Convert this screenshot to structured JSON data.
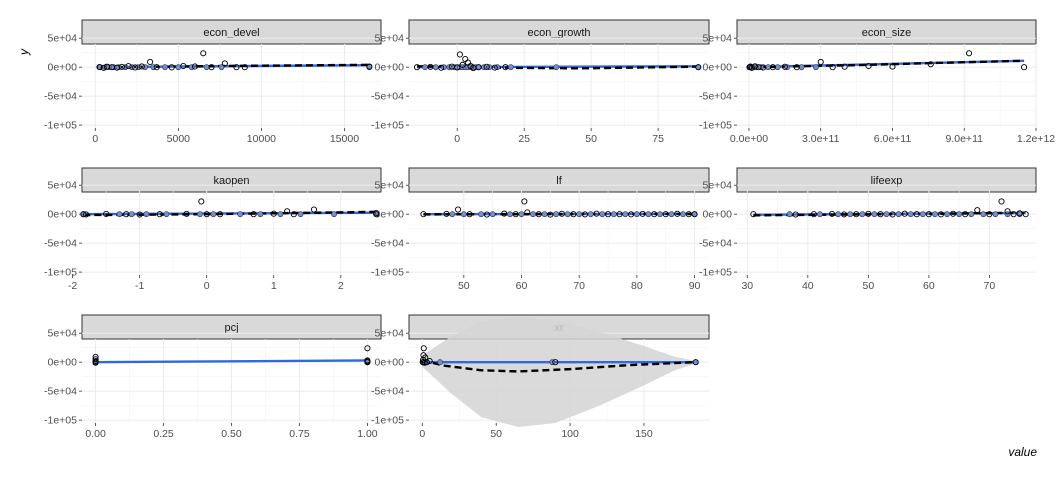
{
  "chart_data": {
    "type": "scatter",
    "xlabel": "value",
    "ylabel": "y",
    "ylim": [
      -105000,
      40000
    ],
    "y_ticks": [
      {
        "v": 50000,
        "label": "5e+04"
      },
      {
        "v": 0,
        "label": "0e+00"
      },
      {
        "v": -50000,
        "label": "-5e+04"
      },
      {
        "v": -100000,
        "label": "-1e+05"
      }
    ],
    "grid": true,
    "colors": {
      "strip": "#d9d9d9",
      "smooth": "#3366e0",
      "dashed": "#000000",
      "band": "#d3d3d3",
      "grid": "#ebebeb",
      "point_fill": "#6e8fd9"
    },
    "panels": [
      {
        "label": "econ_devel",
        "xlim": [
          -800,
          17200
        ],
        "x_ticks": [
          {
            "v": 0,
            "label": "0"
          },
          {
            "v": 5000,
            "label": "5000"
          },
          {
            "v": 10000,
            "label": "10000"
          },
          {
            "v": 15000,
            "label": "15000"
          }
        ],
        "smooth": [
          [
            100,
            0
          ],
          [
            16500,
            3500
          ]
        ],
        "dashed": [
          [
            100,
            -600
          ],
          [
            4000,
            800
          ],
          [
            9000,
            2400
          ],
          [
            16500,
            4000
          ]
        ],
        "points_filled": [
          300,
          600,
          800,
          1100,
          1400,
          1800,
          2200,
          2600,
          3000,
          3500,
          4200,
          5000,
          5800,
          6700,
          7600,
          16500
        ],
        "points_open": [
          [
            250,
            300
          ],
          [
            500,
            -1200
          ],
          [
            700,
            800
          ],
          [
            1000,
            0
          ],
          [
            1300,
            -800
          ],
          [
            1600,
            500
          ],
          [
            2000,
            1800
          ],
          [
            2400,
            -500
          ],
          [
            2800,
            1200
          ],
          [
            3300,
            9000
          ],
          [
            3700,
            0
          ],
          [
            4600,
            -300
          ],
          [
            5300,
            2000
          ],
          [
            6000,
            1200
          ],
          [
            6500,
            24000
          ],
          [
            7000,
            0
          ],
          [
            7800,
            6500
          ],
          [
            8500,
            0
          ],
          [
            9000,
            0
          ],
          [
            16500,
            1000
          ]
        ]
      },
      {
        "label": "econ_growth",
        "xlim": [
          -18,
          94
        ],
        "x_ticks": [
          {
            "v": 0,
            "label": "0"
          },
          {
            "v": 25,
            "label": "25"
          },
          {
            "v": 50,
            "label": "50"
          },
          {
            "v": 75,
            "label": "75"
          }
        ],
        "smooth": [
          [
            -15,
            0
          ],
          [
            90,
            1500
          ]
        ],
        "dashed": [
          [
            -15,
            1500
          ],
          [
            0,
            1000
          ],
          [
            20,
            -1200
          ],
          [
            45,
            -2000
          ],
          [
            70,
            -500
          ],
          [
            90,
            1000
          ]
        ],
        "points_filled": [
          -12,
          -8,
          -5,
          -3,
          -1,
          0,
          1,
          2,
          3,
          4,
          5,
          6,
          7,
          8,
          10,
          12,
          15,
          20,
          37,
          90
        ],
        "points_open": [
          [
            -15,
            0
          ],
          [
            -10,
            500
          ],
          [
            -6,
            -1000
          ],
          [
            -2,
            800
          ],
          [
            0,
            -500
          ],
          [
            1,
            22000
          ],
          [
            2,
            4000
          ],
          [
            3,
            14000
          ],
          [
            4,
            8000
          ],
          [
            5,
            2000
          ],
          [
            6,
            -1500
          ],
          [
            8,
            0
          ],
          [
            11,
            600
          ],
          [
            14,
            -800
          ],
          [
            18,
            0
          ],
          [
            90,
            0
          ]
        ]
      },
      {
        "label": "econ_size",
        "xlim": [
          -50000000000.0,
          1200000000000.0
        ],
        "x_ticks": [
          {
            "v": 0,
            "label": "0.0e+00"
          },
          {
            "v": 300000000000.0,
            "label": "3.0e+11"
          },
          {
            "v": 600000000000.0,
            "label": "6.0e+11"
          },
          {
            "v": 900000000000.0,
            "label": "9.0e+11"
          },
          {
            "v": 1200000000000.0,
            "label": "1.2e+12"
          }
        ],
        "smooth": [
          [
            0,
            0
          ],
          [
            1150000000000.0,
            11000
          ]
        ],
        "dashed": [
          [
            0,
            -500
          ],
          [
            200000000000.0,
            1500
          ],
          [
            500000000000.0,
            4000
          ],
          [
            800000000000.0,
            7500
          ],
          [
            1150000000000.0,
            11000
          ]
        ],
        "points_filled": [
          5000000000.0,
          10000000000.0,
          20000000000.0,
          30000000000.0,
          50000000000.0,
          80000000000.0,
          120000000000.0,
          160000000000.0,
          220000000000.0,
          280000000000.0
        ],
        "points_open": [
          [
            2000000000.0,
            0
          ],
          [
            6000000000.0,
            1000
          ],
          [
            12000000000.0,
            -1200
          ],
          [
            25000000000.0,
            1500
          ],
          [
            40000000000.0,
            0
          ],
          [
            60000000000.0,
            -500
          ],
          [
            100000000000.0,
            0
          ],
          [
            150000000000.0,
            700
          ],
          [
            200000000000.0,
            0
          ],
          [
            300000000000.0,
            9000
          ],
          [
            350000000000.0,
            0
          ],
          [
            400000000000.0,
            800
          ],
          [
            500000000000.0,
            2000
          ],
          [
            600000000000.0,
            1000
          ],
          [
            760000000000.0,
            5000
          ],
          [
            920000000000.0,
            24000
          ],
          [
            1150000000000.0,
            0
          ]
        ]
      },
      {
        "label": "kaopen",
        "xlim": [
          -1.86,
          2.6
        ],
        "x_ticks": [
          {
            "v": -2,
            "label": "-2"
          },
          {
            "v": -1,
            "label": "-1"
          },
          {
            "v": 0,
            "label": "0"
          },
          {
            "v": 1,
            "label": "1"
          },
          {
            "v": 2,
            "label": "2"
          }
        ],
        "smooth": [
          [
            -1.84,
            0
          ],
          [
            2.53,
            2500
          ]
        ],
        "dashed": [
          [
            -1.84,
            -1500
          ],
          [
            -1,
            -1000
          ],
          [
            0,
            0
          ],
          [
            1,
            1500
          ],
          [
            2.53,
            4000
          ]
        ],
        "points_filled": [
          -1.84,
          -1.3,
          -1.12,
          -0.9,
          -0.6,
          -0.1,
          0.1,
          0.5,
          0.8,
          1.1,
          1.4,
          1.9,
          2.53
        ],
        "points_open": [
          [
            -1.84,
            0
          ],
          [
            -1.8,
            -500
          ],
          [
            -1.5,
            400
          ],
          [
            -1.2,
            0
          ],
          [
            -1.0,
            -600
          ],
          [
            -0.7,
            0
          ],
          [
            -0.3,
            500
          ],
          [
            -0.08,
            22000
          ],
          [
            0.0,
            0
          ],
          [
            0.2,
            0
          ],
          [
            0.7,
            0
          ],
          [
            1.0,
            800
          ],
          [
            1.2,
            5000
          ],
          [
            1.3,
            0
          ],
          [
            1.6,
            8000
          ],
          [
            2.53,
            0
          ],
          [
            2.53,
            2000
          ]
        ]
      },
      {
        "label": "lf",
        "xlim": [
          40.5,
          92.5
        ],
        "x_ticks": [
          {
            "v": 50,
            "label": "50"
          },
          {
            "v": 60,
            "label": "60"
          },
          {
            "v": 70,
            "label": "70"
          },
          {
            "v": 80,
            "label": "80"
          },
          {
            "v": 90,
            "label": "90"
          }
        ],
        "smooth": [
          [
            43,
            0
          ],
          [
            90,
            600
          ]
        ],
        "dashed": [
          [
            43,
            -400
          ],
          [
            60,
            0
          ],
          [
            75,
            500
          ],
          [
            90,
            300
          ]
        ],
        "points_filled": [
          48,
          50,
          53,
          55,
          58,
          60,
          62,
          64,
          66,
          68,
          70,
          72,
          74,
          76,
          78,
          80,
          82,
          84,
          86,
          88,
          90
        ],
        "points_open": [
          [
            43,
            0
          ],
          [
            47,
            500
          ],
          [
            49,
            8000
          ],
          [
            51,
            0
          ],
          [
            54,
            -600
          ],
          [
            57,
            1000
          ],
          [
            59,
            0
          ],
          [
            60.5,
            22000
          ],
          [
            61,
            3000
          ],
          [
            63,
            0
          ],
          [
            65,
            -800
          ],
          [
            67,
            700
          ],
          [
            69,
            0
          ],
          [
            71,
            -400
          ],
          [
            73,
            900
          ],
          [
            75,
            0
          ],
          [
            77,
            0
          ],
          [
            79,
            -300
          ],
          [
            81,
            500
          ],
          [
            83,
            0
          ],
          [
            85,
            0
          ],
          [
            87,
            600
          ],
          [
            89,
            0
          ],
          [
            90,
            0
          ]
        ]
      },
      {
        "label": "lifeexp",
        "xlim": [
          28.3,
          77.7
        ],
        "x_ticks": [
          {
            "v": 30,
            "label": "30"
          },
          {
            "v": 40,
            "label": "40"
          },
          {
            "v": 50,
            "label": "50"
          },
          {
            "v": 60,
            "label": "60"
          },
          {
            "v": 70,
            "label": "70"
          }
        ],
        "smooth": [
          [
            31,
            -1000
          ],
          [
            76,
            2000
          ]
        ],
        "dashed": [
          [
            31,
            -2000
          ],
          [
            45,
            -800
          ],
          [
            60,
            500
          ],
          [
            76,
            2500
          ]
        ],
        "points_filled": [
          37,
          42,
          45,
          47,
          49,
          51,
          53,
          55,
          57,
          59,
          61,
          63,
          65,
          67,
          69,
          71,
          73,
          75
        ],
        "points_open": [
          [
            31,
            0
          ],
          [
            38,
            -600
          ],
          [
            41,
            0
          ],
          [
            44,
            500
          ],
          [
            46,
            -400
          ],
          [
            48,
            0
          ],
          [
            50,
            600
          ],
          [
            52,
            0
          ],
          [
            54,
            -500
          ],
          [
            56,
            800
          ],
          [
            58,
            0
          ],
          [
            60,
            0
          ],
          [
            62,
            -300
          ],
          [
            64,
            700
          ],
          [
            66,
            0
          ],
          [
            68,
            7000
          ],
          [
            70,
            0
          ],
          [
            72,
            22000
          ],
          [
            73,
            5000
          ],
          [
            74,
            0
          ],
          [
            75,
            1500
          ],
          [
            76,
            0
          ]
        ]
      },
      {
        "label": "pcj",
        "xlim": [
          -0.05,
          1.05
        ],
        "x_ticks": [
          {
            "v": 0,
            "label": "0.00"
          },
          {
            "v": 0.25,
            "label": "0.25"
          },
          {
            "v": 0.5,
            "label": "0.50"
          },
          {
            "v": 0.75,
            "label": "0.75"
          },
          {
            "v": 1,
            "label": "1.00"
          }
        ],
        "smooth": [
          [
            0,
            0
          ],
          [
            1,
            3000
          ]
        ],
        "dashed": [],
        "points_filled": [
          0,
          1
        ],
        "points_open": [
          [
            0,
            0
          ],
          [
            0,
            2000
          ],
          [
            0,
            5000
          ],
          [
            0,
            9000
          ],
          [
            0,
            -1000
          ],
          [
            1,
            0
          ],
          [
            1,
            1500
          ],
          [
            1,
            3000
          ],
          [
            1,
            24000
          ]
        ]
      },
      {
        "label": "xr",
        "xlim": [
          -9,
          194
        ],
        "x_ticks": [
          {
            "v": 0,
            "label": "0"
          },
          {
            "v": 50,
            "label": "50"
          },
          {
            "v": 100,
            "label": "100"
          },
          {
            "v": 150,
            "label": "150"
          }
        ],
        "smooth": [
          [
            0,
            0
          ],
          [
            185,
            0
          ]
        ],
        "dashed": [
          [
            0,
            3000
          ],
          [
            15,
            -6000
          ],
          [
            40,
            -14000
          ],
          [
            65,
            -16000
          ],
          [
            100,
            -12000
          ],
          [
            140,
            -5000
          ],
          [
            185,
            0
          ]
        ],
        "band": [
          [
            0,
            12000,
            -8000
          ],
          [
            20,
            45000,
            -55000
          ],
          [
            40,
            70000,
            -95000
          ],
          [
            65,
            78000,
            -112000
          ],
          [
            90,
            72000,
            -105000
          ],
          [
            120,
            52000,
            -75000
          ],
          [
            150,
            28000,
            -40000
          ],
          [
            170,
            10000,
            -15000
          ],
          [
            185,
            2000,
            -2000
          ]
        ],
        "points_filled": [
          0.5,
          1,
          2,
          3,
          12,
          88,
          185
        ],
        "points_open": [
          [
            0.3,
            0
          ],
          [
            0.5,
            4000
          ],
          [
            0.8,
            12000
          ],
          [
            1,
            24000
          ],
          [
            1.5,
            -1000
          ],
          [
            2,
            8000
          ],
          [
            3,
            0
          ],
          [
            5,
            2000
          ],
          [
            90,
            0
          ],
          [
            185,
            0
          ]
        ]
      }
    ]
  }
}
